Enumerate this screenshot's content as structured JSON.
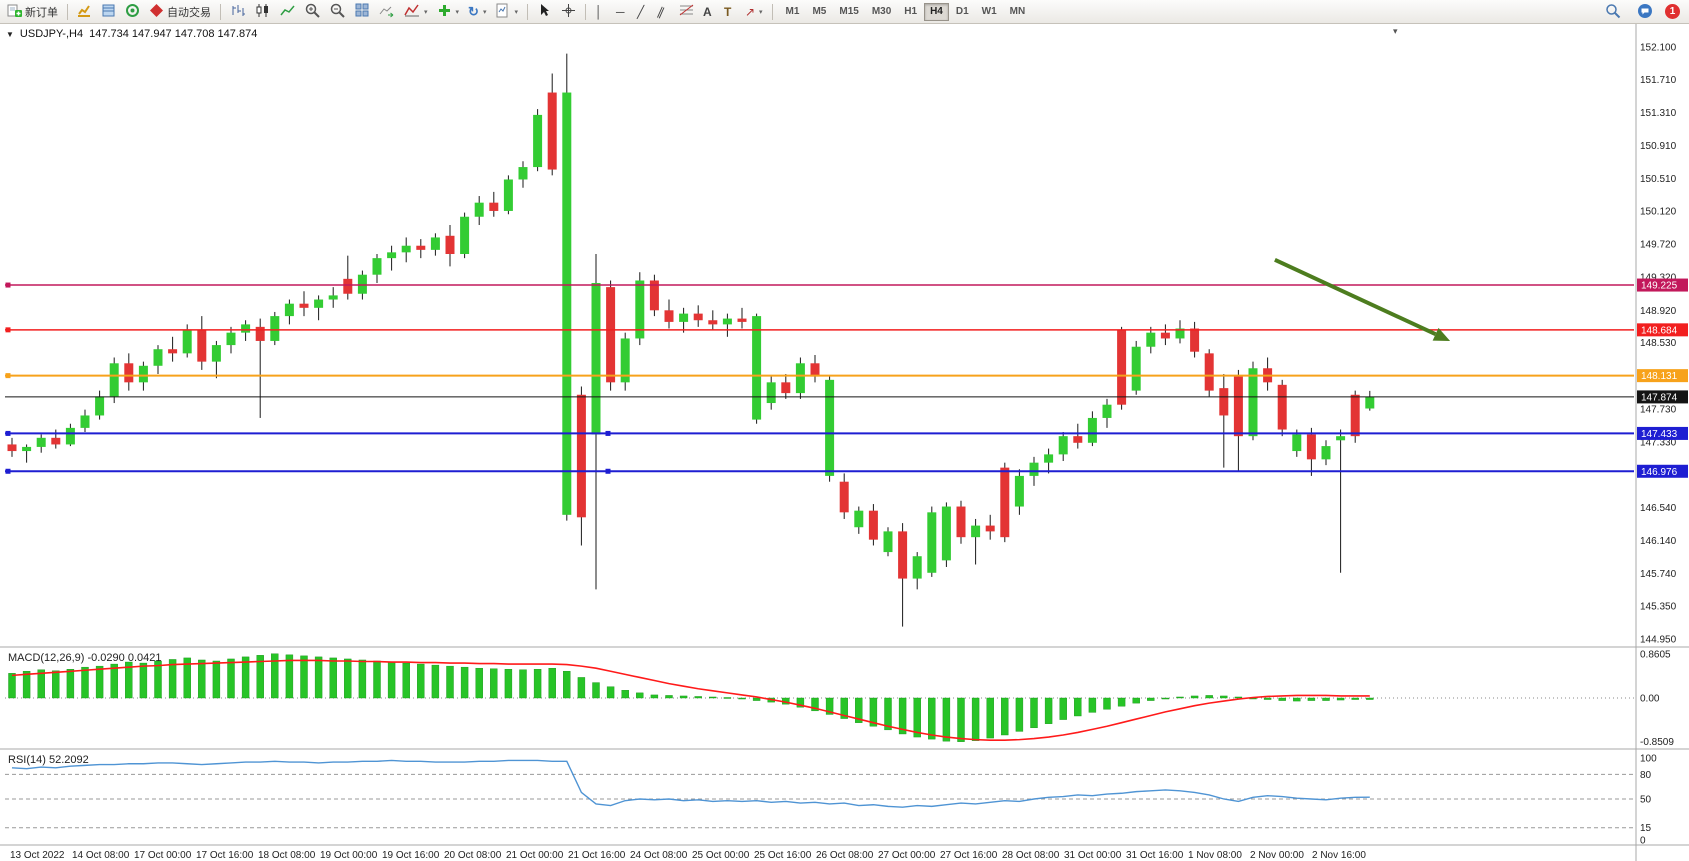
{
  "toolbar": {
    "new_order_label": "新订单",
    "autotrading_label": "自动交易",
    "timeframes": [
      "M1",
      "M5",
      "M15",
      "M30",
      "H1",
      "H4",
      "D1",
      "W1",
      "MN"
    ],
    "active_timeframe": "H4",
    "notification_count": "1"
  },
  "icons": {
    "symbol_marker": "▼",
    "shift_marker": "▾",
    "caret": "▾",
    "vertical_line": "│",
    "horizontal_line": "─",
    "trendline": "╱",
    "channel": "∥",
    "text_tool": "A",
    "label_tool": "T",
    "arrows_tool": "↗",
    "refresh": "↻"
  },
  "chart": {
    "symbol_period": "USDJPY-,H4",
    "ohlc_text": "147.734 147.947 147.708 147.874"
  },
  "chart_data": {
    "type": "candlestick",
    "symbol": "USDJPY-",
    "period": "H4",
    "style": {
      "up_color": "#33cc33",
      "down_color": "#e33434",
      "wick_color": "#1a1a1a"
    },
    "price_axis": [
      "152.100",
      "151.710",
      "151.310",
      "150.910",
      "150.510",
      "150.120",
      "149.720",
      "149.320",
      "148.920",
      "148.530",
      "148.130",
      "147.730",
      "147.330",
      "146.940",
      "146.540",
      "146.140",
      "145.740",
      "145.350",
      "144.950"
    ],
    "time_labels": [
      "13 Oct 2022",
      "14 Oct 08:00",
      "17 Oct 00:00",
      "17 Oct 16:00",
      "18 Oct 08:00",
      "19 Oct 00:00",
      "19 Oct 16:00",
      "20 Oct 08:00",
      "21 Oct 00:00",
      "21 Oct 16:00",
      "24 Oct 08:00",
      "25 Oct 00:00",
      "25 Oct 16:00",
      "26 Oct 08:00",
      "27 Oct 00:00",
      "27 Oct 16:00",
      "28 Oct 08:00",
      "31 Oct 00:00",
      "31 Oct 16:00",
      "1 Nov 08:00",
      "2 Nov 00:00",
      "2 Nov 16:00"
    ],
    "price_lines": [
      {
        "price": 149.225,
        "label": "149.225",
        "color": "#c2185b",
        "width": 1.5,
        "handles": [
          "left"
        ]
      },
      {
        "price": 148.684,
        "label": "148.684",
        "color": "#f21f1f",
        "width": 1.5,
        "handles": [
          "left"
        ]
      },
      {
        "price": 148.131,
        "label": "148.131",
        "color": "#f7a21b",
        "width": 2,
        "handles": [
          "left"
        ]
      },
      {
        "price": 147.874,
        "label": "147.874",
        "color": "#141414",
        "width": 1,
        "handles": []
      },
      {
        "price": 147.433,
        "label": "147.433",
        "color": "#1e1ed2",
        "width": 2,
        "handles": [
          "left",
          "center"
        ]
      },
      {
        "price": 146.976,
        "label": "146.976",
        "color": "#1e1ed2",
        "width": 2,
        "handles": [
          "left",
          "center"
        ]
      }
    ],
    "annotations": {
      "arrow": {
        "from_bar": 86.5,
        "from_price": 149.53,
        "to_bar": 98.5,
        "to_price": 148.55,
        "color": "#4d7d1f"
      }
    },
    "candles": [
      [
        147.3,
        147.38,
        147.15,
        147.22
      ],
      [
        147.22,
        147.3,
        147.08,
        147.27
      ],
      [
        147.27,
        147.42,
        147.2,
        147.38
      ],
      [
        147.38,
        147.48,
        147.25,
        147.3
      ],
      [
        147.3,
        147.55,
        147.28,
        147.5
      ],
      [
        147.5,
        147.72,
        147.45,
        147.65
      ],
      [
        147.65,
        147.95,
        147.6,
        147.88
      ],
      [
        147.88,
        148.35,
        147.8,
        148.28
      ],
      [
        148.28,
        148.4,
        147.95,
        148.05
      ],
      [
        148.05,
        148.3,
        147.95,
        148.25
      ],
      [
        148.25,
        148.5,
        148.15,
        148.45
      ],
      [
        148.45,
        148.6,
        148.3,
        148.4
      ],
      [
        148.4,
        148.75,
        148.35,
        148.68
      ],
      [
        148.68,
        148.85,
        148.2,
        148.3
      ],
      [
        148.3,
        148.55,
        148.1,
        148.5
      ],
      [
        148.5,
        148.72,
        148.4,
        148.65
      ],
      [
        148.65,
        148.8,
        148.55,
        148.75
      ],
      [
        148.72,
        148.82,
        147.62,
        148.55
      ],
      [
        148.55,
        148.9,
        148.5,
        148.85
      ],
      [
        148.85,
        149.05,
        148.75,
        149.0
      ],
      [
        149.0,
        149.15,
        148.85,
        148.95
      ],
      [
        148.95,
        149.1,
        148.8,
        149.05
      ],
      [
        149.05,
        149.2,
        148.95,
        149.1
      ],
      [
        149.3,
        149.58,
        149.05,
        149.12
      ],
      [
        149.12,
        149.4,
        149.05,
        149.35
      ],
      [
        149.35,
        149.6,
        149.25,
        149.55
      ],
      [
        149.55,
        149.7,
        149.4,
        149.62
      ],
      [
        149.62,
        149.8,
        149.5,
        149.7
      ],
      [
        149.7,
        149.78,
        149.55,
        149.65
      ],
      [
        149.65,
        149.85,
        149.58,
        149.8
      ],
      [
        149.82,
        149.95,
        149.45,
        149.6
      ],
      [
        149.6,
        150.1,
        149.55,
        150.05
      ],
      [
        150.05,
        150.3,
        149.95,
        150.22
      ],
      [
        150.22,
        150.35,
        150.05,
        150.12
      ],
      [
        150.12,
        150.55,
        150.08,
        150.5
      ],
      [
        150.5,
        150.72,
        150.4,
        150.65
      ],
      [
        150.65,
        151.35,
        150.6,
        151.28
      ],
      [
        151.55,
        151.78,
        150.55,
        150.62
      ],
      [
        146.45,
        152.02,
        146.38,
        151.55
      ],
      [
        147.9,
        148.0,
        146.08,
        146.42
      ],
      [
        147.42,
        149.6,
        145.55,
        149.25
      ],
      [
        149.2,
        149.28,
        147.95,
        148.05
      ],
      [
        148.05,
        148.65,
        147.95,
        148.58
      ],
      [
        148.58,
        149.38,
        148.5,
        149.28
      ],
      [
        149.28,
        149.35,
        148.85,
        148.92
      ],
      [
        148.92,
        149.05,
        148.7,
        148.78
      ],
      [
        148.78,
        148.95,
        148.65,
        148.88
      ],
      [
        148.88,
        148.98,
        148.72,
        148.8
      ],
      [
        148.8,
        148.92,
        148.68,
        148.75
      ],
      [
        148.75,
        148.88,
        148.6,
        148.82
      ],
      [
        148.82,
        148.95,
        148.7,
        148.78
      ],
      [
        147.6,
        148.88,
        147.55,
        148.85
      ],
      [
        147.8,
        148.12,
        147.72,
        148.05
      ],
      [
        148.05,
        148.15,
        147.85,
        147.92
      ],
      [
        147.92,
        148.35,
        147.85,
        148.28
      ],
      [
        148.28,
        148.38,
        148.05,
        148.12
      ],
      [
        146.92,
        148.12,
        146.85,
        148.08
      ],
      [
        146.85,
        146.95,
        146.4,
        146.48
      ],
      [
        146.3,
        146.55,
        146.22,
        146.5
      ],
      [
        146.5,
        146.58,
        146.08,
        146.15
      ],
      [
        146.0,
        146.3,
        145.95,
        146.25
      ],
      [
        146.25,
        146.35,
        145.1,
        145.68
      ],
      [
        145.68,
        146.0,
        145.55,
        145.95
      ],
      [
        145.75,
        146.55,
        145.7,
        146.48
      ],
      [
        145.9,
        146.6,
        145.82,
        146.55
      ],
      [
        146.55,
        146.62,
        146.1,
        146.18
      ],
      [
        146.18,
        146.4,
        145.85,
        146.32
      ],
      [
        146.32,
        146.45,
        146.15,
        146.25
      ],
      [
        147.02,
        147.08,
        146.12,
        146.18
      ],
      [
        146.55,
        147.0,
        146.45,
        146.92
      ],
      [
        146.92,
        147.15,
        146.8,
        147.08
      ],
      [
        147.08,
        147.25,
        146.95,
        147.18
      ],
      [
        147.18,
        147.45,
        147.1,
        147.4
      ],
      [
        147.4,
        147.55,
        147.25,
        147.32
      ],
      [
        147.32,
        147.7,
        147.28,
        147.62
      ],
      [
        147.62,
        147.85,
        147.5,
        147.78
      ],
      [
        148.68,
        148.72,
        147.72,
        147.78
      ],
      [
        147.95,
        148.55,
        147.9,
        148.48
      ],
      [
        148.48,
        148.72,
        148.4,
        148.65
      ],
      [
        148.65,
        148.75,
        148.5,
        148.58
      ],
      [
        148.58,
        148.8,
        148.52,
        148.7
      ],
      [
        148.7,
        148.78,
        148.35,
        148.42
      ],
      [
        148.4,
        148.45,
        147.88,
        147.95
      ],
      [
        147.98,
        148.15,
        147.02,
        147.65
      ],
      [
        148.12,
        148.2,
        146.98,
        147.4
      ],
      [
        147.4,
        148.3,
        147.35,
        148.22
      ],
      [
        148.22,
        148.35,
        147.95,
        148.05
      ],
      [
        148.02,
        148.08,
        147.4,
        147.48
      ],
      [
        147.22,
        147.48,
        147.15,
        147.42
      ],
      [
        147.42,
        147.5,
        146.92,
        147.12
      ],
      [
        147.12,
        147.35,
        147.05,
        147.28
      ],
      [
        147.35,
        147.48,
        145.75,
        147.4
      ],
      [
        147.9,
        147.95,
        147.32,
        147.4
      ],
      [
        147.734,
        147.947,
        147.708,
        147.874
      ]
    ],
    "indicators": {
      "macd": {
        "label": "MACD(12,26,9) -0.0290 0.0421",
        "axis_labels": [
          "0.8605",
          "0.00",
          "-0.8509"
        ],
        "hist_color": "#27c427",
        "signal_color": "#ff1a1a",
        "histogram": [
          0.48,
          0.52,
          0.55,
          0.53,
          0.56,
          0.6,
          0.62,
          0.66,
          0.7,
          0.68,
          0.72,
          0.75,
          0.78,
          0.74,
          0.72,
          0.76,
          0.8,
          0.83,
          0.86,
          0.84,
          0.82,
          0.8,
          0.78,
          0.76,
          0.74,
          0.72,
          0.7,
          0.68,
          0.66,
          0.64,
          0.62,
          0.6,
          0.58,
          0.57,
          0.56,
          0.55,
          0.56,
          0.58,
          0.52,
          0.4,
          0.3,
          0.22,
          0.15,
          0.1,
          0.06,
          0.05,
          0.04,
          0.03,
          0.02,
          0.01,
          -0.02,
          -0.05,
          -0.08,
          -0.12,
          -0.18,
          -0.25,
          -0.32,
          -0.4,
          -0.48,
          -0.55,
          -0.62,
          -0.7,
          -0.76,
          -0.8,
          -0.84,
          -0.85,
          -0.83,
          -0.78,
          -0.72,
          -0.65,
          -0.58,
          -0.5,
          -0.42,
          -0.35,
          -0.28,
          -0.22,
          -0.16,
          -0.1,
          -0.05,
          -0.02,
          0.02,
          0.04,
          0.05,
          0.04,
          0.02,
          -0.01,
          -0.03,
          -0.05,
          -0.06,
          -0.05,
          -0.05,
          -0.04,
          -0.03,
          -0.03
        ],
        "signal": [
          0.44,
          0.46,
          0.48,
          0.5,
          0.52,
          0.54,
          0.56,
          0.58,
          0.6,
          0.62,
          0.63,
          0.65,
          0.66,
          0.67,
          0.68,
          0.69,
          0.7,
          0.71,
          0.72,
          0.73,
          0.73,
          0.73,
          0.72,
          0.72,
          0.71,
          0.71,
          0.7,
          0.7,
          0.69,
          0.69,
          0.68,
          0.68,
          0.67,
          0.67,
          0.66,
          0.66,
          0.66,
          0.66,
          0.65,
          0.62,
          0.58,
          0.52,
          0.46,
          0.4,
          0.34,
          0.28,
          0.23,
          0.18,
          0.14,
          0.1,
          0.06,
          0.02,
          -0.03,
          -0.08,
          -0.14,
          -0.2,
          -0.27,
          -0.34,
          -0.41,
          -0.48,
          -0.55,
          -0.61,
          -0.67,
          -0.72,
          -0.76,
          -0.79,
          -0.81,
          -0.82,
          -0.82,
          -0.81,
          -0.79,
          -0.76,
          -0.72,
          -0.67,
          -0.61,
          -0.55,
          -0.48,
          -0.41,
          -0.34,
          -0.27,
          -0.21,
          -0.15,
          -0.1,
          -0.06,
          -0.02,
          0.01,
          0.03,
          0.04,
          0.05,
          0.05,
          0.05,
          0.04,
          0.04,
          0.04
        ]
      },
      "rsi": {
        "label": "RSI(14) 52.2092",
        "axis_labels": [
          "100",
          "80",
          "50",
          "15",
          "0"
        ],
        "levels": [
          80,
          50,
          15
        ],
        "line_color": "#4f94d4",
        "values": [
          88,
          87,
          89,
          88,
          90,
          91,
          92,
          92,
          93,
          93,
          94,
          94,
          93,
          92,
          93,
          94,
          95,
          95,
          96,
          95,
          95,
          94,
          95,
          95,
          96,
          96,
          97,
          96,
          96,
          95,
          95,
          95,
          96,
          96,
          97,
          97,
          97,
          96,
          96,
          58,
          44,
          42,
          48,
          50,
          49,
          50,
          48,
          49,
          47,
          48,
          47,
          48,
          46,
          47,
          45,
          46,
          44,
          45,
          42,
          43,
          41,
          40,
          42,
          41,
          43,
          45,
          44,
          46,
          48,
          47,
          50,
          52,
          53,
          55,
          54,
          56,
          57,
          59,
          60,
          61,
          60,
          58,
          55,
          50,
          47,
          52,
          54,
          53,
          51,
          50,
          49,
          51,
          52,
          52.2
        ]
      }
    }
  }
}
